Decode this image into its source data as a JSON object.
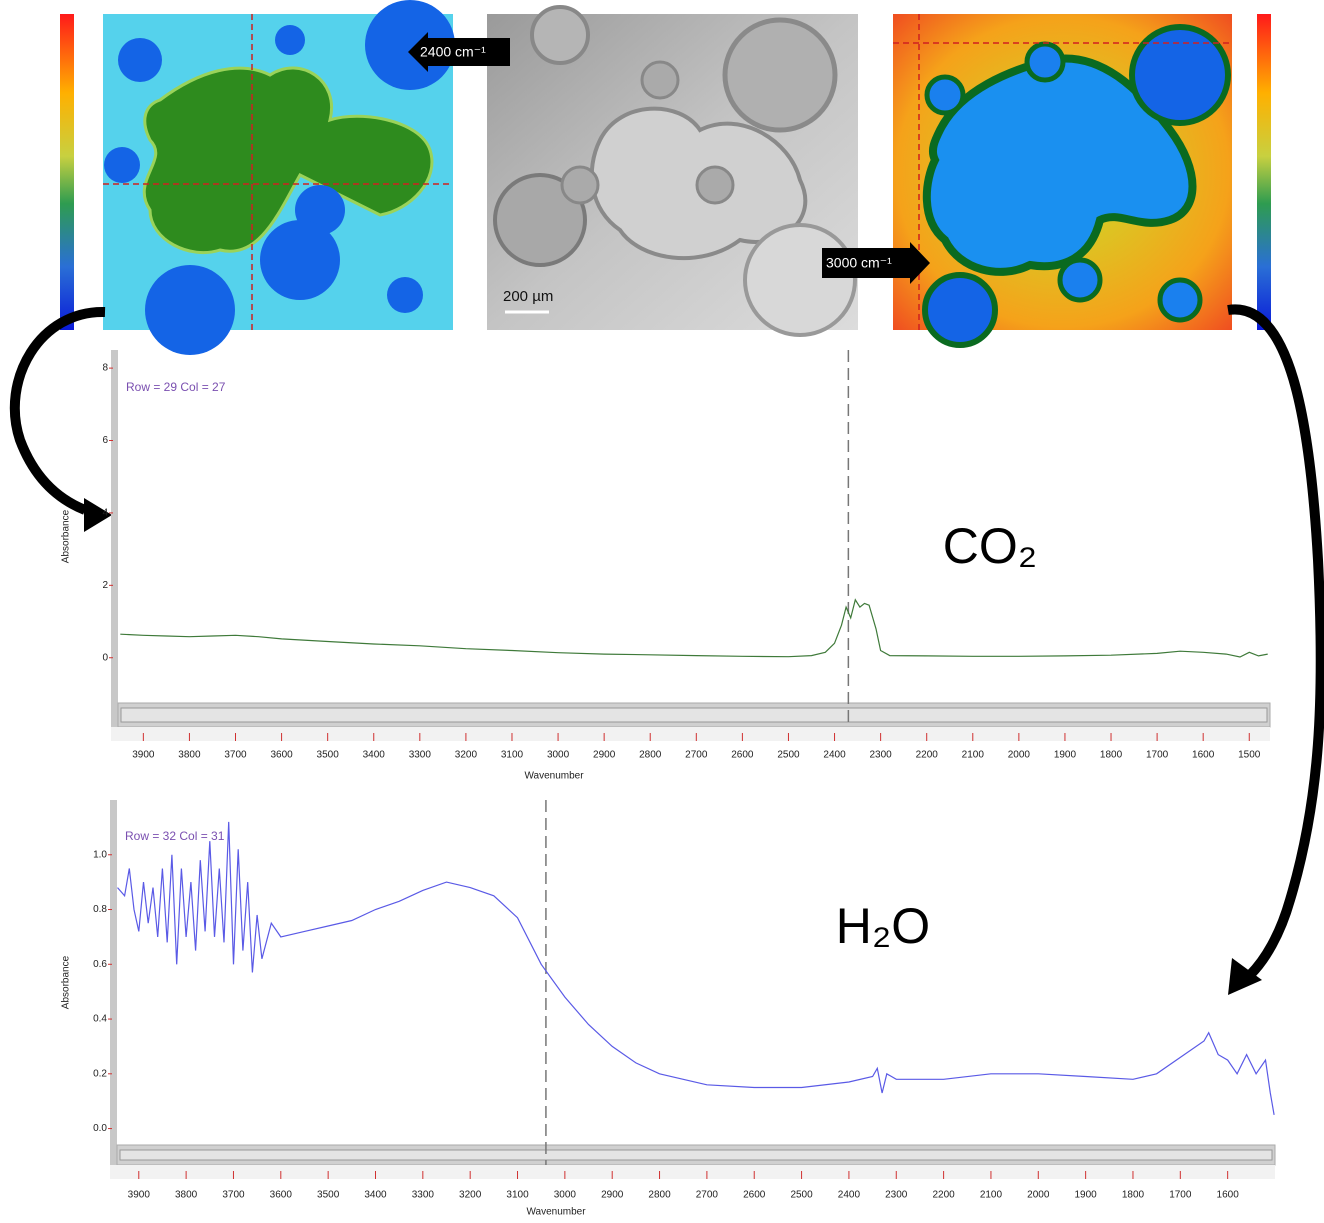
{
  "images": {
    "left_label": "2400 cm⁻¹",
    "scale_bar": "200 µm",
    "right_label": "3000 cm⁻¹"
  },
  "chart_data": [
    {
      "type": "line",
      "annotation": "Row = 29 Col = 27",
      "species_label": "CO₂",
      "x_label": "Wavenumber",
      "y_label": "Absorbance",
      "color": "#3f7a3a",
      "cursor_x": 2370,
      "xlim": [
        3955,
        1455
      ],
      "xticks": [
        3900,
        3800,
        3700,
        3600,
        3500,
        3400,
        3300,
        3200,
        3100,
        3000,
        2900,
        2800,
        2700,
        2600,
        2500,
        2400,
        2300,
        2200,
        2100,
        2000,
        1900,
        1800,
        1700,
        1600,
        1500
      ],
      "ylim": [
        -1.25,
        8.5
      ],
      "yticks": [
        0,
        2,
        4,
        6,
        8
      ],
      "x": [
        3950,
        3900,
        3850,
        3800,
        3750,
        3700,
        3650,
        3600,
        3500,
        3400,
        3300,
        3200,
        3100,
        3000,
        2900,
        2800,
        2700,
        2600,
        2500,
        2450,
        2420,
        2400,
        2385,
        2375,
        2365,
        2355,
        2345,
        2335,
        2325,
        2310,
        2300,
        2280,
        2200,
        2100,
        2000,
        1900,
        1800,
        1700,
        1650,
        1600,
        1550,
        1520,
        1500,
        1480,
        1460
      ],
      "values": [
        0.65,
        0.62,
        0.6,
        0.58,
        0.6,
        0.62,
        0.58,
        0.52,
        0.45,
        0.38,
        0.33,
        0.25,
        0.2,
        0.14,
        0.1,
        0.08,
        0.06,
        0.04,
        0.03,
        0.06,
        0.15,
        0.4,
        0.9,
        1.4,
        1.1,
        1.6,
        1.4,
        1.5,
        1.45,
        0.8,
        0.2,
        0.06,
        0.05,
        0.04,
        0.04,
        0.05,
        0.07,
        0.12,
        0.18,
        0.15,
        0.1,
        0.02,
        0.15,
        0.05,
        0.1
      ]
    },
    {
      "type": "line",
      "annotation": "Row = 32 Col = 31",
      "species_label": "H₂O",
      "x_label": "Wavenumber",
      "y_label": "Absorbance",
      "color": "#5a5ae6",
      "cursor_x": 3040,
      "xlim": [
        3946,
        1500
      ],
      "xticks": [
        3900,
        3800,
        3700,
        3600,
        3500,
        3400,
        3300,
        3200,
        3100,
        3000,
        2900,
        2800,
        2700,
        2600,
        2500,
        2400,
        2300,
        2200,
        2100,
        2000,
        1900,
        1800,
        1700,
        1600
      ],
      "ylim": [
        -0.06,
        1.2
      ],
      "yticks": [
        {
          "value": 0,
          "label": "0.0"
        },
        0.2,
        0.4,
        0.6,
        0.8,
        {
          "value": 1,
          "label": "1.0"
        }
      ],
      "x": [
        3945,
        3930,
        3920,
        3910,
        3900,
        3890,
        3880,
        3870,
        3860,
        3850,
        3840,
        3830,
        3820,
        3810,
        3800,
        3790,
        3780,
        3770,
        3760,
        3750,
        3740,
        3730,
        3720,
        3710,
        3700,
        3690,
        3680,
        3670,
        3660,
        3650,
        3640,
        3620,
        3600,
        3550,
        3500,
        3450,
        3400,
        3350,
        3300,
        3250,
        3200,
        3150,
        3100,
        3050,
        3000,
        2950,
        2900,
        2850,
        2800,
        2700,
        2600,
        2500,
        2400,
        2350,
        2340,
        2330,
        2320,
        2300,
        2200,
        2100,
        2000,
        1900,
        1800,
        1750,
        1700,
        1650,
        1640,
        1620,
        1600,
        1580,
        1560,
        1540,
        1520,
        1510,
        1502
      ],
      "values": [
        0.88,
        0.85,
        0.95,
        0.8,
        0.72,
        0.9,
        0.75,
        0.88,
        0.7,
        0.95,
        0.68,
        1.0,
        0.6,
        0.95,
        0.7,
        0.9,
        0.65,
        0.98,
        0.72,
        1.05,
        0.7,
        0.95,
        0.68,
        1.12,
        0.6,
        1.02,
        0.65,
        0.9,
        0.57,
        0.78,
        0.62,
        0.75,
        0.7,
        0.72,
        0.74,
        0.76,
        0.8,
        0.83,
        0.87,
        0.9,
        0.88,
        0.85,
        0.77,
        0.6,
        0.48,
        0.38,
        0.3,
        0.24,
        0.2,
        0.16,
        0.15,
        0.15,
        0.17,
        0.19,
        0.22,
        0.13,
        0.2,
        0.18,
        0.18,
        0.2,
        0.2,
        0.19,
        0.18,
        0.2,
        0.26,
        0.32,
        0.35,
        0.27,
        0.25,
        0.2,
        0.27,
        0.2,
        0.25,
        0.13,
        0.05
      ]
    }
  ]
}
